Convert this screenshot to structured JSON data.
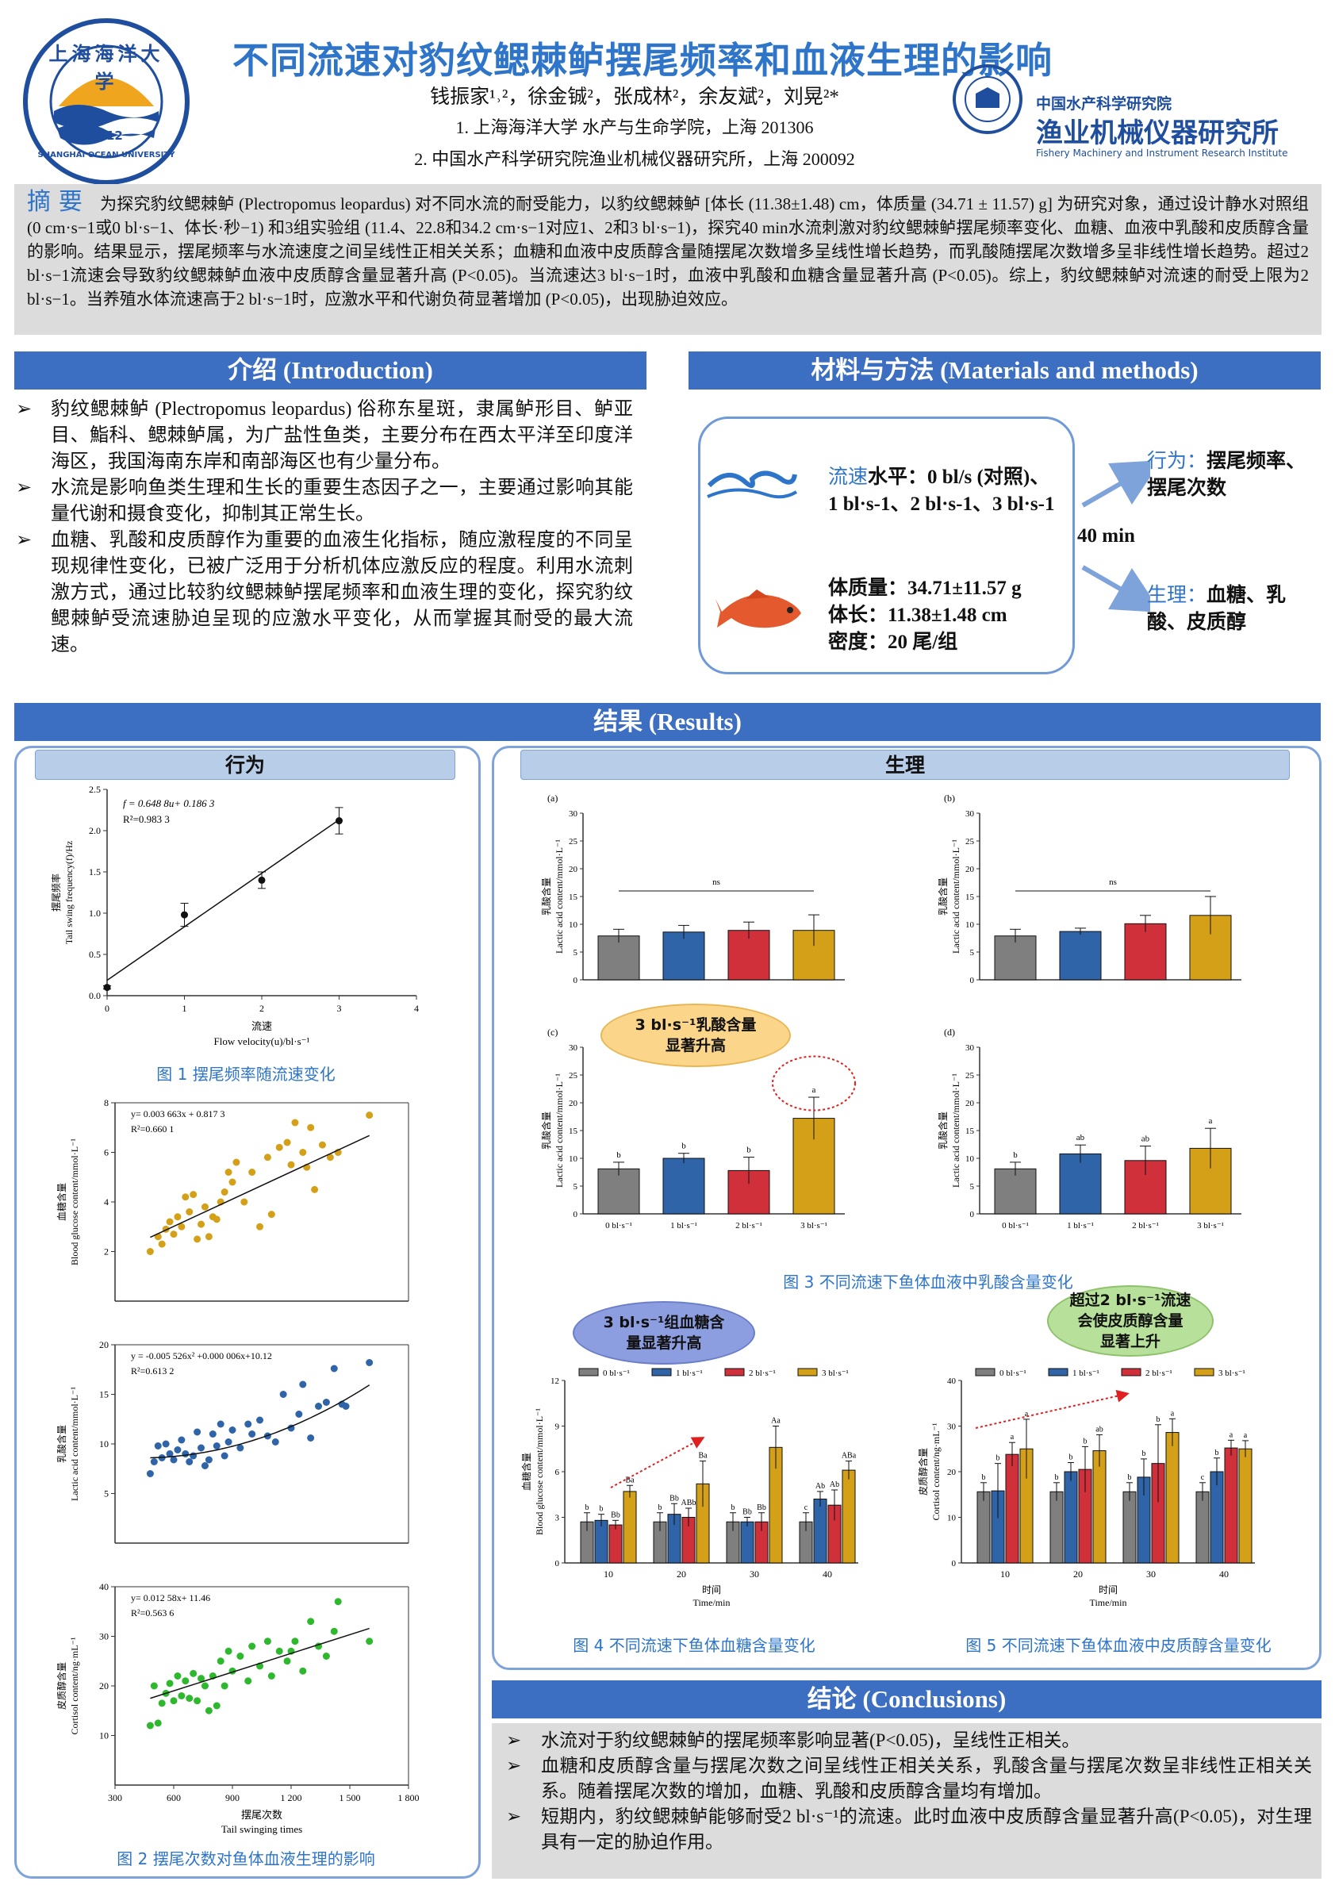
{
  "header": {
    "title": "不同流速对豹纹鳃棘鲈摆尾频率和血液生理的影响",
    "authors": "钱振家¹˒²，徐金铖²，张成林²，余友斌²，刘晃²*",
    "affiliation1": "1. 上海海洋大学 水产与生命学院，上海 201306",
    "affiliation2": "2. 中国水产科学研究院渔业机械仪器研究所，上海 200092",
    "logo_left_cn": "上海海洋大学",
    "logo_left_en": "SHANGHAI OCEAN UNIVERSITY",
    "logo_left_year": "1912",
    "logo_right_line1": "中国水产科学研究院",
    "logo_right_line2": "渔业机械仪器研究所",
    "logo_right_line3": "Fishery Machinery and Instrument Research Institute"
  },
  "abstract": {
    "heading": "摘 要",
    "text": "为探究豹纹鳃棘鲈 (Plectropomus leopardus) 对不同水流的耐受能力，以豹纹鳃棘鲈 [体长 (11.38±1.48) cm，体质量 (34.71 ± 11.57) g] 为研究对象，通过设计静水对照组 (0 cm·s−1或0 bl·s−1、体长·秒−1) 和3组实验组 (11.4、22.8和34.2 cm·s−1对应1、2和3 bl·s−1)，探究40 min水流刺激对豹纹鳃棘鲈摆尾频率变化、血糖、血液中乳酸和皮质醇含量的影响。结果显示，摆尾频率与水流速度之间呈线性正相关关系；血糖和血液中皮质醇含量随摆尾次数增多呈线性增长趋势，而乳酸随摆尾次数增多呈非线性增长趋势。超过2 bl·s−1流速会导致豹纹鳃棘鲈血液中皮质醇含量显著升高 (P<0.05)。当流速达3 bl·s−1时，血液中乳酸和血糖含量显著升高 (P<0.05)。综上，豹纹鳃棘鲈对流速的耐受上限为2 bl·s−1。当养殖水体流速高于2 bl·s−1时，应激水平和代谢负荷显著增加 (P<0.05)，出现胁迫效应。"
  },
  "intro": {
    "heading": "介绍 (Introduction)",
    "bullets": [
      "豹纹鳃棘鲈 (Plectropomus leopardus) 俗称东星斑，隶属鲈形目、鲈亚目、鮨科、鳃棘鲈属，为广盐性鱼类，主要分布在西太平洋至印度洋海区，我国海南东岸和南部海区也有少量分布。",
      "水流是影响鱼类生理和生长的重要生态因子之一，主要通过影响其能量代谢和摄食变化，抑制其正常生长。",
      "血糖、乳酸和皮质醇作为重要的血液生化指标，随应激程度的不同呈现规律性变化，已被广泛用于分析机体应激反应的程度。利用水流刺激方式，通过比较豹纹鳃棘鲈摆尾频率和血液生理的变化，探究豹纹鳃棘鲈受流速胁迫呈现的应激水平变化，从而掌握其耐受的最大流速。"
    ]
  },
  "methods": {
    "heading": "材料与方法 (Materials and methods)",
    "flow_label": "流速",
    "flow_text": "水平：0 bl/s (对照)、",
    "flow_text2": "1 bl·s-1、2 bl·s-1、3 bl·s-1",
    "duration": "40 min",
    "body_mass": "体质量：34.71±11.57 g",
    "body_length": "体长：11.38±1.48 cm",
    "density": "密度：20 尾/组",
    "behavior_label": "行为：",
    "behavior_text": "摆尾频率、",
    "behavior_text2": "摆尾次数",
    "physio_label": "生理：",
    "physio_text": "血糖、乳",
    "physio_text2": "酸、皮质醇"
  },
  "results": {
    "heading": "结果 (Results)",
    "behavior_heading": "行为",
    "physio_heading": "生理",
    "fig1": {
      "caption": "图 1  摆尾频率随流速变化",
      "equation": "f = 0.648 8u+ 0.186 3",
      "r2": "R²=0.983 3",
      "ylabel_cn": "摆尾频率",
      "ylabel_en": "Tail swing frequency(f)/Hz",
      "xlabel_cn": "流速",
      "xlabel_en": "Flow velocity(u)/bl·s⁻¹"
    },
    "fig2": {
      "caption": "图 2  摆尾次数对鱼体血液生理的影响",
      "xlabel_cn": "摆尾次数",
      "xlabel_en": "Tail swinging times",
      "a": {
        "equation": "y= 0.003 663x + 0.817 3",
        "r2": "R²=0.660 1",
        "ylabel_cn": "血糖含量",
        "ylabel_en": "Blood glucose content/mmol·L⁻¹"
      },
      "b": {
        "equation": "y = -0.005 526x² +0.000 006x+10.12",
        "r2": "R²=0.613 2",
        "ylabel_cn": "乳酸含量",
        "ylabel_en": "Lactic acid content/mmol·L⁻¹"
      },
      "c": {
        "equation": "y= 0.012 58x+ 11.46",
        "r2": "R²=0.563 6",
        "ylabel_cn": "皮质醇含量",
        "ylabel_en": "Cortisol content/ng·mL⁻¹"
      }
    },
    "fig3": {
      "caption": "图 3  不同流速下鱼体血液中乳酸含量变化",
      "ylabel_cn": "乳酸含量",
      "ylabel_en": "Lactic acid content/mmol·L⁻¹",
      "panels": [
        "(a)",
        "(b)",
        "(c)",
        "(d)"
      ],
      "ns": "ns",
      "bubble": "3 bl·s⁻¹乳酸含量\n显著升高"
    },
    "fig4": {
      "caption": "图 4  不同流速下鱼体血糖含量变化",
      "ylabel_cn": "血糖含量",
      "ylabel_en": "Blood glucose content/mmol·L⁻¹",
      "xlabel_cn": "时间",
      "xlabel_en": "Time/min",
      "bubble": "3 bl·s⁻¹组血糖含\n量显著升高"
    },
    "fig5": {
      "caption": "图 5  不同流速下鱼体血液中皮质醇含量变化",
      "ylabel_cn": "皮质醇含量",
      "ylabel_en": "Cortisol content/ng·mL⁻¹",
      "xlabel_cn": "时间",
      "xlabel_en": "Time/min",
      "bubble": "超过2 bl·s⁻¹流速\n会使皮质醇含量\n显著上升"
    }
  },
  "conclusions": {
    "heading": "结论 (Conclusions)",
    "bullets": [
      "水流对于豹纹鳃棘鲈的摆尾频率影响显著(P<0.05)，呈线性正相关。",
      "血糖和皮质醇含量与摆尾次数之间呈线性正相关关系，乳酸含量与摆尾次数呈非线性正相关关系。随着摆尾次数的增加，血糖、乳酸和皮质醇含量均有增加。",
      "短期内，豹纹鳃棘鲈能够耐受2 bl·s⁻¹的流速。此时血液中皮质醇含量显著升高(P<0.05)，对生理具有一定的胁迫作用。"
    ]
  },
  "colors": {
    "title": "#2e75c9",
    "band": "#3c6ec2",
    "s0": "#7f7f7f",
    "s1": "#2f64a8",
    "s2": "#d0303a",
    "s3": "#d4a017",
    "glucose_pts": "#d4a017",
    "lactic_pts": "#2f64a8",
    "cortisol_pts": "#2db82d"
  },
  "chart_data": [
    {
      "id": "fig1",
      "type": "scatter",
      "x": [
        0,
        1,
        2,
        3
      ],
      "y": [
        0.1,
        0.98,
        1.4,
        2.12
      ],
      "err": [
        0.02,
        0.14,
        0.1,
        0.16
      ],
      "xlim": [
        0,
        4
      ],
      "ylim": [
        0,
        2.5
      ],
      "xticks": [
        "0",
        "1",
        "2",
        "3",
        "4"
      ],
      "yticks": [
        "0.0",
        "0.5",
        "1.0",
        "1.5",
        "2.0",
        "2.5"
      ]
    },
    {
      "id": "fig2a",
      "type": "scatter",
      "xlim": [
        300,
        1800
      ],
      "ylim": [
        0,
        8
      ],
      "yticks": [
        "2",
        "4",
        "6",
        "8"
      ],
      "fit": "linear",
      "points": [
        [
          480,
          2.0
        ],
        [
          520,
          2.6
        ],
        [
          540,
          2.3
        ],
        [
          560,
          2.9
        ],
        [
          580,
          3.2
        ],
        [
          600,
          2.7
        ],
        [
          620,
          3.4
        ],
        [
          640,
          3.0
        ],
        [
          660,
          4.2
        ],
        [
          680,
          3.6
        ],
        [
          700,
          4.3
        ],
        [
          720,
          2.5
        ],
        [
          740,
          3.1
        ],
        [
          760,
          3.8
        ],
        [
          780,
          2.6
        ],
        [
          800,
          3.4
        ],
        [
          820,
          3.3
        ],
        [
          840,
          4.0
        ],
        [
          860,
          4.4
        ],
        [
          880,
          5.2
        ],
        [
          900,
          4.8
        ],
        [
          920,
          5.6
        ],
        [
          960,
          4.0
        ],
        [
          1000,
          5.2
        ],
        [
          1040,
          3.0
        ],
        [
          1080,
          5.8
        ],
        [
          1100,
          3.5
        ],
        [
          1140,
          6.2
        ],
        [
          1180,
          6.4
        ],
        [
          1200,
          5.5
        ],
        [
          1220,
          7.2
        ],
        [
          1260,
          6.0
        ],
        [
          1280,
          5.4
        ],
        [
          1300,
          7.0
        ],
        [
          1320,
          4.5
        ],
        [
          1360,
          6.3
        ],
        [
          1400,
          5.8
        ],
        [
          1440,
          6.0
        ],
        [
          1600,
          7.5
        ]
      ]
    },
    {
      "id": "fig2b",
      "type": "scatter",
      "xlim": [
        300,
        1800
      ],
      "ylim": [
        0,
        20
      ],
      "yticks": [
        "5",
        "10",
        "15",
        "20"
      ],
      "fit": "quadratic",
      "points": [
        [
          480,
          7.0
        ],
        [
          500,
          8.2
        ],
        [
          520,
          9.8
        ],
        [
          540,
          8.6
        ],
        [
          560,
          10.0
        ],
        [
          580,
          9.0
        ],
        [
          600,
          8.4
        ],
        [
          620,
          9.4
        ],
        [
          640,
          10.4
        ],
        [
          660,
          9.0
        ],
        [
          680,
          8.2
        ],
        [
          700,
          8.8
        ],
        [
          720,
          11.2
        ],
        [
          740,
          9.6
        ],
        [
          760,
          7.8
        ],
        [
          780,
          8.4
        ],
        [
          800,
          11.0
        ],
        [
          820,
          9.8
        ],
        [
          840,
          12.0
        ],
        [
          860,
          8.8
        ],
        [
          880,
          10.2
        ],
        [
          900,
          11.4
        ],
        [
          940,
          9.6
        ],
        [
          980,
          12.0
        ],
        [
          1000,
          11.0
        ],
        [
          1040,
          12.4
        ],
        [
          1080,
          10.8
        ],
        [
          1120,
          10.2
        ],
        [
          1160,
          15.0
        ],
        [
          1200,
          11.6
        ],
        [
          1240,
          13.0
        ],
        [
          1260,
          16.0
        ],
        [
          1300,
          10.6
        ],
        [
          1340,
          13.8
        ],
        [
          1380,
          14.2
        ],
        [
          1420,
          17.6
        ],
        [
          1460,
          14.0
        ],
        [
          1480,
          13.8
        ],
        [
          1600,
          18.2
        ]
      ]
    },
    {
      "id": "fig2c",
      "type": "scatter",
      "xlim": [
        300,
        1800
      ],
      "ylim": [
        0,
        40
      ],
      "yticks": [
        "10",
        "20",
        "30",
        "40"
      ],
      "fit": "linear",
      "points": [
        [
          480,
          12.0
        ],
        [
          500,
          20.0
        ],
        [
          520,
          12.5
        ],
        [
          540,
          16.5
        ],
        [
          560,
          18.5
        ],
        [
          580,
          20.5
        ],
        [
          600,
          17.0
        ],
        [
          620,
          22.0
        ],
        [
          640,
          18.0
        ],
        [
          660,
          21.0
        ],
        [
          680,
          17.5
        ],
        [
          700,
          22.5
        ],
        [
          720,
          17.0
        ],
        [
          740,
          21.5
        ],
        [
          760,
          20.0
        ],
        [
          780,
          15.0
        ],
        [
          800,
          22.0
        ],
        [
          820,
          16.0
        ],
        [
          840,
          25.0
        ],
        [
          860,
          20.0
        ],
        [
          880,
          27.0
        ],
        [
          900,
          23.0
        ],
        [
          940,
          26.0
        ],
        [
          980,
          21.0
        ],
        [
          1000,
          28.0
        ],
        [
          1040,
          24.0
        ],
        [
          1080,
          29.0
        ],
        [
          1100,
          22.0
        ],
        [
          1140,
          27.0
        ],
        [
          1180,
          25.0
        ],
        [
          1200,
          27.0
        ],
        [
          1220,
          29.0
        ],
        [
          1260,
          23.0
        ],
        [
          1300,
          33.0
        ],
        [
          1340,
          28.0
        ],
        [
          1380,
          26.0
        ],
        [
          1420,
          31.0
        ],
        [
          1440,
          37.0
        ],
        [
          1600,
          29.0
        ]
      ]
    },
    {
      "id": "fig3a",
      "type": "bar",
      "categories": [
        "0 bl·s⁻¹",
        "1 bl·s⁻¹",
        "2 bl·s⁻¹",
        "3 bl·s⁻¹"
      ],
      "values": [
        7.9,
        8.6,
        8.9,
        8.9
      ],
      "err": [
        1.2,
        1.2,
        1.5,
        2.8
      ],
      "ylim": [
        0,
        30
      ],
      "labels": [
        "",
        "",
        "",
        ""
      ],
      "sig": "ns"
    },
    {
      "id": "fig3b",
      "type": "bar",
      "categories": [
        "0 bl·s⁻¹",
        "1 bl·s⁻¹",
        "2 bl·s⁻¹",
        "3 bl·s⁻¹"
      ],
      "values": [
        7.9,
        8.7,
        10.1,
        11.6
      ],
      "err": [
        1.2,
        0.6,
        1.5,
        3.4
      ],
      "ylim": [
        0,
        30
      ],
      "labels": [
        "",
        "",
        "",
        ""
      ],
      "sig": "ns"
    },
    {
      "id": "fig3c",
      "type": "bar",
      "categories": [
        "0 bl·s⁻¹",
        "1 bl·s⁻¹",
        "2 bl·s⁻¹",
        "3 bl·s⁻¹"
      ],
      "values": [
        8.1,
        10.0,
        7.8,
        17.2
      ],
      "err": [
        1.2,
        0.9,
        2.4,
        3.8
      ],
      "ylim": [
        0,
        30
      ],
      "labels": [
        "b",
        "b",
        "b",
        "a"
      ]
    },
    {
      "id": "fig3d",
      "type": "bar",
      "categories": [
        "0 bl·s⁻¹",
        "1 bl·s⁻¹",
        "2 bl·s⁻¹",
        "3 bl·s⁻¹"
      ],
      "values": [
        8.1,
        10.8,
        9.6,
        11.8
      ],
      "err": [
        1.2,
        1.6,
        2.6,
        3.6
      ],
      "ylim": [
        0,
        30
      ],
      "labels": [
        "b",
        "ab",
        "ab",
        "a"
      ]
    },
    {
      "id": "fig4",
      "type": "bar",
      "categories": [
        "10",
        "20",
        "30",
        "40"
      ],
      "series": [
        {
          "name": "0 bl·s⁻¹",
          "values": [
            2.7,
            2.7,
            2.7,
            2.7
          ],
          "err": [
            0.6,
            0.6,
            0.6,
            0.6
          ],
          "labels": [
            "b",
            "b",
            "b",
            "c"
          ]
        },
        {
          "name": "1 bl·s⁻¹",
          "values": [
            2.8,
            3.2,
            2.7,
            4.2
          ],
          "err": [
            0.4,
            0.7,
            0.3,
            0.5
          ],
          "labels": [
            "b",
            "Bb",
            "Bb",
            "Ab"
          ]
        },
        {
          "name": "2 bl·s⁻¹",
          "values": [
            2.5,
            3.0,
            2.7,
            3.8
          ],
          "err": [
            0.3,
            0.6,
            0.6,
            1.0
          ],
          "labels": [
            "Bb",
            "ABb",
            "Bb",
            "Ab"
          ]
        },
        {
          "name": "3 bl·s⁻¹",
          "values": [
            4.7,
            5.2,
            7.6,
            6.1
          ],
          "err": [
            0.4,
            1.5,
            1.4,
            0.6
          ],
          "labels": [
            "Ba",
            "Ba",
            "Aa",
            "ABa"
          ]
        }
      ],
      "ylim": [
        0,
        12
      ],
      "yticks": [
        "0",
        "3",
        "6",
        "9",
        "12"
      ]
    },
    {
      "id": "fig5",
      "type": "bar",
      "categories": [
        "10",
        "20",
        "30",
        "40"
      ],
      "series": [
        {
          "name": "0 bl·s⁻¹",
          "values": [
            15.6,
            15.6,
            15.6,
            15.6
          ],
          "err": [
            2.0,
            2.0,
            2.0,
            2.0
          ],
          "labels": [
            "b",
            "b",
            "b",
            "c"
          ]
        },
        {
          "name": "1 bl·s⁻¹",
          "values": [
            15.8,
            20.0,
            18.8,
            20.0
          ],
          "err": [
            6.0,
            2.0,
            4.0,
            3.0
          ],
          "labels": [
            "b",
            "b",
            "b",
            "b"
          ]
        },
        {
          "name": "2 bl·s⁻¹",
          "values": [
            23.8,
            20.5,
            21.8,
            25.2
          ],
          "err": [
            2.6,
            5.0,
            8.5,
            1.7
          ],
          "labels": [
            "a",
            "b",
            "b",
            "a"
          ]
        },
        {
          "name": "3 bl·s⁻¹",
          "values": [
            25.0,
            24.6,
            28.6,
            25.0
          ],
          "err": [
            6.5,
            3.5,
            3.0,
            1.8
          ],
          "labels": [
            "a",
            "ab",
            "a",
            "a"
          ]
        }
      ],
      "ylim": [
        0,
        40
      ],
      "yticks": [
        "0",
        "10",
        "20",
        "30",
        "40"
      ]
    }
  ]
}
